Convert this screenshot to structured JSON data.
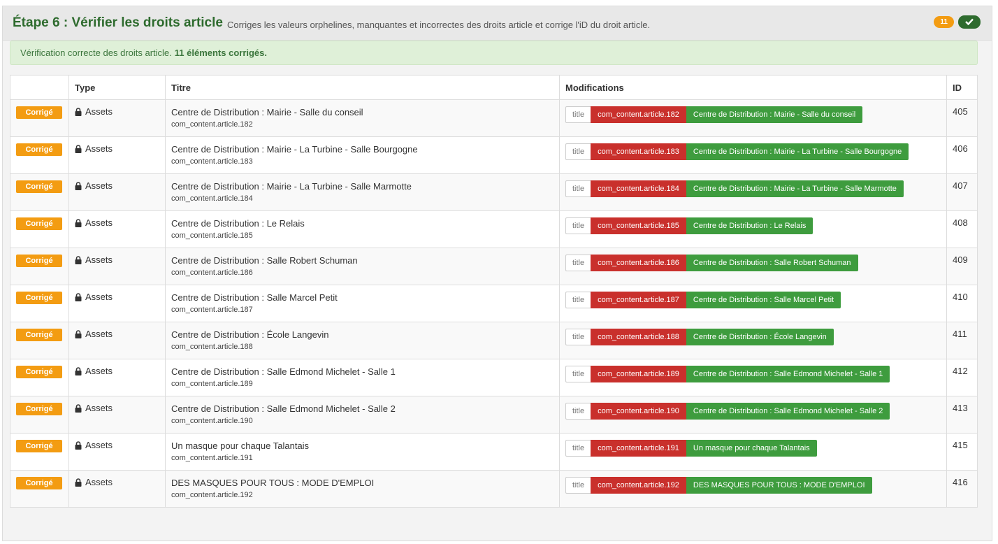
{
  "header": {
    "title": "Étape 6 : Vérifier les droits article",
    "description": "Corriges les valeurs orphelines, manquantes et incorrectes des droits article et corrige l'iD du droit article.",
    "count_badge": "11",
    "check_icon": "check-icon"
  },
  "alert": {
    "text": "Vérification correcte des droits article.",
    "bold": "11 éléments corrigés."
  },
  "table": {
    "columns": [
      "",
      "Type",
      "Titre",
      "Modifications",
      "ID"
    ],
    "rows": [
      {
        "status": "Corrigé",
        "type": "Assets",
        "title": "Centre de Distribution : Mairie - Salle du conseil",
        "name": "com_content.article.182",
        "field": "title",
        "old": "com_content.article.182",
        "new": "Centre de Distribution : Mairie - Salle du conseil",
        "id": "405"
      },
      {
        "status": "Corrigé",
        "type": "Assets",
        "title": "Centre de Distribution : Mairie - La Turbine - Salle Bourgogne",
        "name": "com_content.article.183",
        "field": "title",
        "old": "com_content.article.183",
        "new": "Centre de Distribution : Mairie - La Turbine - Salle Bourgogne",
        "id": "406"
      },
      {
        "status": "Corrigé",
        "type": "Assets",
        "title": "Centre de Distribution : Mairie - La Turbine - Salle Marmotte",
        "name": "com_content.article.184",
        "field": "title",
        "old": "com_content.article.184",
        "new": "Centre de Distribution : Mairie - La Turbine - Salle Marmotte",
        "id": "407"
      },
      {
        "status": "Corrigé",
        "type": "Assets",
        "title": "Centre de Distribution : Le Relais",
        "name": "com_content.article.185",
        "field": "title",
        "old": "com_content.article.185",
        "new": "Centre de Distribution : Le Relais",
        "id": "408"
      },
      {
        "status": "Corrigé",
        "type": "Assets",
        "title": "Centre de Distribution : Salle Robert Schuman",
        "name": "com_content.article.186",
        "field": "title",
        "old": "com_content.article.186",
        "new": "Centre de Distribution : Salle Robert Schuman",
        "id": "409"
      },
      {
        "status": "Corrigé",
        "type": "Assets",
        "title": "Centre de Distribution : Salle Marcel Petit",
        "name": "com_content.article.187",
        "field": "title",
        "old": "com_content.article.187",
        "new": "Centre de Distribution : Salle Marcel Petit",
        "id": "410"
      },
      {
        "status": "Corrigé",
        "type": "Assets",
        "title": "Centre de Distribution : École Langevin",
        "name": "com_content.article.188",
        "field": "title",
        "old": "com_content.article.188",
        "new": "Centre de Distribution : École Langevin",
        "id": "411"
      },
      {
        "status": "Corrigé",
        "type": "Assets",
        "title": "Centre de Distribution : Salle Edmond Michelet - Salle 1",
        "name": "com_content.article.189",
        "field": "title",
        "old": "com_content.article.189",
        "new": "Centre de Distribution : Salle Edmond Michelet - Salle 1",
        "id": "412"
      },
      {
        "status": "Corrigé",
        "type": "Assets",
        "title": "Centre de Distribution : Salle Edmond Michelet - Salle 2",
        "name": "com_content.article.190",
        "field": "title",
        "old": "com_content.article.190",
        "new": "Centre de Distribution : Salle Edmond Michelet - Salle 2",
        "id": "413"
      },
      {
        "status": "Corrigé",
        "type": "Assets",
        "title": "Un masque pour chaque Talantais",
        "name": "com_content.article.191",
        "field": "title",
        "old": "com_content.article.191",
        "new": "Un masque pour chaque Talantais",
        "id": "415"
      },
      {
        "status": "Corrigé",
        "type": "Assets",
        "title": "DES MASQUES POUR TOUS : MODE D'EMPLOI",
        "name": "com_content.article.192",
        "field": "title",
        "old": "com_content.article.192",
        "new": "DES MASQUES POUR TOUS : MODE D'EMPLOI",
        "id": "416"
      }
    ]
  },
  "colors": {
    "title": "#2e6b2e",
    "badge_orange": "#f39c12",
    "old_red": "#c9302c",
    "new_green": "#3e9c3e",
    "alert_bg": "#dff0d8"
  }
}
